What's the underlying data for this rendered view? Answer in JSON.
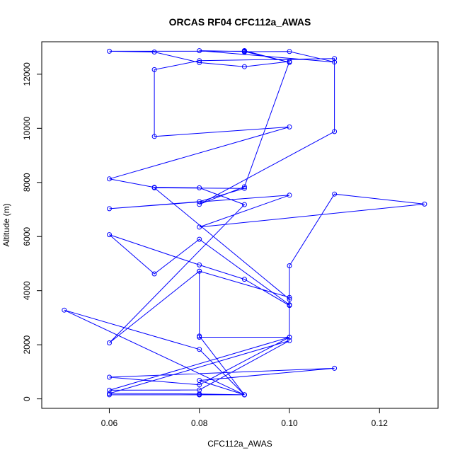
{
  "chart_data": {
    "type": "line",
    "title": "ORCAS RF04 CFC112a_AWAS",
    "xlabel": "CFC112a_AWAS",
    "ylabel": "Altitude (m)",
    "xlim": [
      0.045,
      0.133
    ],
    "ylim": [
      -350,
      13200
    ],
    "x_ticks": [
      0.06,
      0.08,
      0.1,
      0.12
    ],
    "x_tick_labels": [
      "0.06",
      "0.08",
      "0.10",
      "0.12"
    ],
    "y_ticks": [
      0,
      2000,
      4000,
      6000,
      8000,
      10000,
      12000
    ],
    "y_tick_labels": [
      "0",
      "2000",
      "4000",
      "6000",
      "8000",
      "10000",
      "12000"
    ],
    "grid": false,
    "series_color": "#0000ff",
    "series": [
      {
        "x": [
          0.09,
          0.08,
          0.06,
          0.08,
          0.09,
          0.08,
          0.06,
          0.1,
          0.08,
          0.06,
          0.1,
          0.08,
          0.06,
          0.11,
          0.08,
          0.09,
          0.08,
          0.05,
          0.09,
          0.08,
          0.08,
          0.1,
          0.1,
          0.09,
          0.08,
          0.06,
          0.07,
          0.08,
          0.1,
          0.1,
          0.07,
          0.09,
          0.08,
          0.06,
          0.1,
          0.08,
          0.13,
          0.11,
          0.1,
          0.1,
          0.08,
          0.08,
          0.06,
          0.09,
          0.08,
          0.07,
          0.06,
          0.1,
          0.07,
          0.07,
          0.08,
          0.11,
          0.11,
          0.08,
          0.09,
          0.1,
          0.09,
          0.08,
          0.07,
          0.06,
          0.09,
          0.09,
          0.09,
          0.09,
          0.1,
          0.11,
          0.08,
          0.09,
          0.1,
          0.09
        ],
        "y": [
          150,
          150,
          150,
          150,
          150,
          180,
          200,
          2150,
          330,
          320,
          2280,
          520,
          800,
          1130,
          680,
          150,
          1830,
          3280,
          150,
          2320,
          4720,
          3750,
          3450,
          4420,
          4950,
          6070,
          4620,
          5900,
          3480,
          3680,
          7800,
          7780,
          7290,
          7030,
          7530,
          6350,
          7200,
          7570,
          4920,
          2280,
          2280,
          4720,
          2070,
          7180,
          7800,
          7820,
          8130,
          10050,
          9700,
          12170,
          12500,
          12580,
          9880,
          7190,
          7840,
          12470,
          12280,
          12430,
          12820,
          12850,
          12850,
          12820,
          12870,
          12830,
          12840,
          12450,
          12870,
          12840,
          12440,
          12870
        ]
      }
    ]
  }
}
